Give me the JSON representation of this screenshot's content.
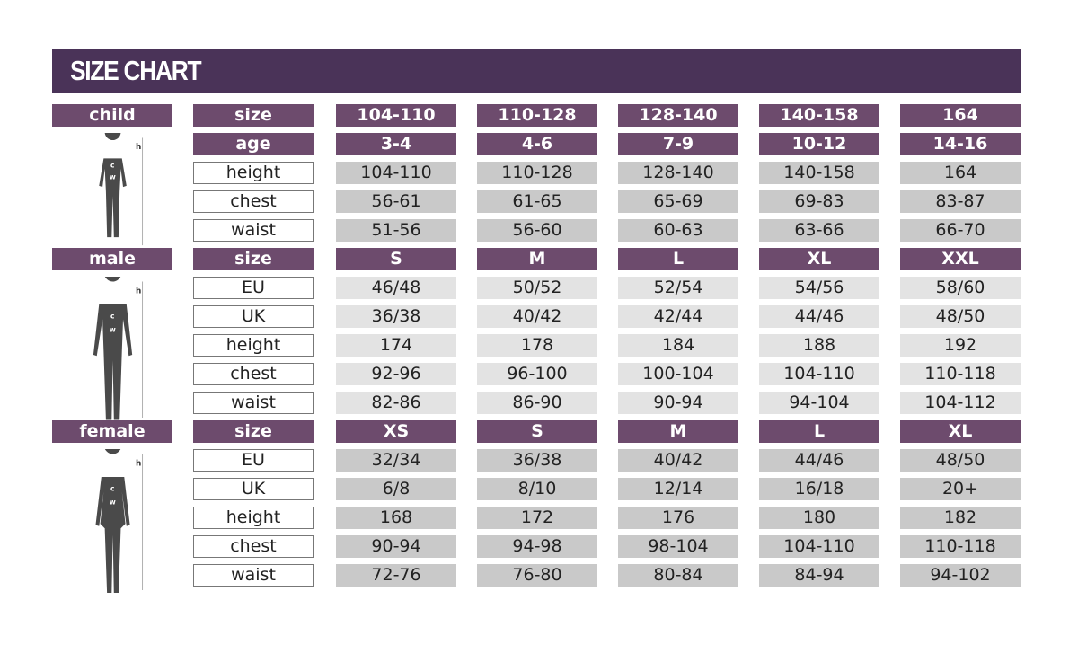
{
  "title": "SIZE CHART",
  "colors": {
    "header": "#4a3358",
    "label_cell": "#6d4b6d",
    "data_dark": "#c9c9c9",
    "data_light": "#e3e3e3"
  },
  "sections": [
    {
      "category": "child",
      "figure_icon": "child-silhouette-icon",
      "figure_marks": {
        "h": "h",
        "c": "c",
        "w": "w"
      },
      "shade": "grey",
      "rows": [
        {
          "label": "size",
          "header": true,
          "values": [
            "104-110",
            "110-128",
            "128-140",
            "140-158",
            "164"
          ]
        },
        {
          "label": "age",
          "header": true,
          "values": [
            "3-4",
            "4-6",
            "7-9",
            "10-12",
            "14-16"
          ]
        },
        {
          "label": "height",
          "values": [
            "104-110",
            "110-128",
            "128-140",
            "140-158",
            "164"
          ]
        },
        {
          "label": "chest",
          "values": [
            "56-61",
            "61-65",
            "65-69",
            "69-83",
            "83-87"
          ]
        },
        {
          "label": "waist",
          "values": [
            "51-56",
            "56-60",
            "60-63",
            "63-66",
            "66-70"
          ]
        }
      ]
    },
    {
      "category": "male",
      "figure_icon": "male-silhouette-icon",
      "figure_marks": {
        "h": "h",
        "c": "c",
        "w": "w"
      },
      "shade": "light",
      "rows": [
        {
          "label": "size",
          "header": true,
          "values": [
            "S",
            "M",
            "L",
            "XL",
            "XXL"
          ]
        },
        {
          "label": "EU",
          "values": [
            "46/48",
            "50/52",
            "52/54",
            "54/56",
            "58/60"
          ]
        },
        {
          "label": "UK",
          "values": [
            "36/38",
            "40/42",
            "42/44",
            "44/46",
            "48/50"
          ]
        },
        {
          "label": "height",
          "values": [
            "174",
            "178",
            "184",
            "188",
            "192"
          ]
        },
        {
          "label": "chest",
          "values": [
            "92-96",
            "96-100",
            "100-104",
            "104-110",
            "110-118"
          ]
        },
        {
          "label": "waist",
          "values": [
            "82-86",
            "86-90",
            "90-94",
            "94-104",
            "104-112"
          ]
        }
      ]
    },
    {
      "category": "female",
      "figure_icon": "female-silhouette-icon",
      "figure_marks": {
        "h": "h",
        "c": "c",
        "w": "w"
      },
      "shade": "grey",
      "rows": [
        {
          "label": "size",
          "header": true,
          "values": [
            "XS",
            "S",
            "M",
            "L",
            "XL"
          ]
        },
        {
          "label": "EU",
          "values": [
            "32/34",
            "36/38",
            "40/42",
            "44/46",
            "48/50"
          ]
        },
        {
          "label": "UK",
          "values": [
            "6/8",
            "8/10",
            "12/14",
            "16/18",
            "20+"
          ]
        },
        {
          "label": "height",
          "values": [
            "168",
            "172",
            "176",
            "180",
            "182"
          ]
        },
        {
          "label": "chest",
          "values": [
            "90-94",
            "94-98",
            "98-104",
            "104-110",
            "110-118"
          ]
        },
        {
          "label": "waist",
          "values": [
            "72-76",
            "76-80",
            "80-84",
            "84-94",
            "94-102"
          ]
        }
      ]
    }
  ]
}
